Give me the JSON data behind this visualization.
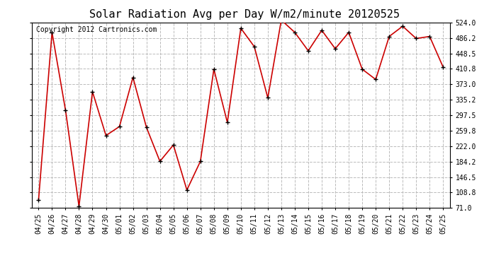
{
  "title": "Solar Radiation Avg per Day W/m2/minute 20120525",
  "copyright": "Copyright 2012 Cartronics.com",
  "dates": [
    "04/25",
    "04/26",
    "04/27",
    "04/28",
    "04/29",
    "04/30",
    "05/01",
    "05/02",
    "05/03",
    "05/04",
    "05/05",
    "05/06",
    "05/07",
    "05/08",
    "05/09",
    "05/10",
    "05/11",
    "05/12",
    "05/13",
    "05/14",
    "05/15",
    "05/16",
    "05/17",
    "05/18",
    "05/19",
    "05/20",
    "05/21",
    "05/22",
    "05/23",
    "05/24",
    "05/25"
  ],
  "values": [
    90,
    500,
    310,
    75,
    355,
    248,
    270,
    390,
    268,
    185,
    225,
    115,
    185,
    410,
    280,
    510,
    465,
    340,
    530,
    500,
    455,
    505,
    460,
    500,
    410,
    385,
    490,
    515,
    485,
    490,
    415
  ],
  "line_color": "#cc0000",
  "marker_color": "#000000",
  "bg_color": "#ffffff",
  "plot_bg_color": "#ffffff",
  "grid_color": "#bbbbbb",
  "title_fontsize": 11,
  "copyright_fontsize": 7,
  "tick_fontsize": 7,
  "ytick_labels": [
    "71.0",
    "108.8",
    "146.5",
    "184.2",
    "222.0",
    "259.8",
    "297.5",
    "335.2",
    "373.0",
    "410.8",
    "448.5",
    "486.2",
    "524.0"
  ],
  "ytick_values": [
    71.0,
    108.8,
    146.5,
    184.2,
    222.0,
    259.8,
    297.5,
    335.2,
    373.0,
    410.8,
    448.5,
    486.2,
    524.0
  ],
  "ymin": 71.0,
  "ymax": 524.0
}
